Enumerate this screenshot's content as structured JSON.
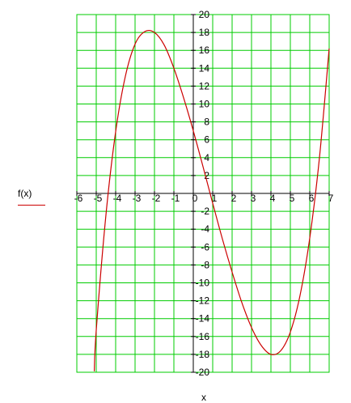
{
  "chart_data": {
    "type": "line",
    "title": "",
    "xlabel": "x",
    "ylabel": "",
    "xlim": [
      -6,
      7
    ],
    "ylim": [
      -20,
      20
    ],
    "x_ticks": [
      -6,
      -5,
      -4,
      -3,
      -2,
      -1,
      0,
      1,
      2,
      3,
      4,
      5,
      6,
      7
    ],
    "y_ticks": [
      -20,
      -18,
      -16,
      -14,
      -12,
      -10,
      -8,
      -6,
      -4,
      -2,
      2,
      4,
      6,
      8,
      10,
      12,
      14,
      16,
      18,
      20
    ],
    "grid": true,
    "grid_color": "#00cc00",
    "legend": {
      "label": "f(x)",
      "placement": "left",
      "color": "#cc0000"
    },
    "series": [
      {
        "name": "f(x)",
        "color": "#cc0000",
        "x": [
          -5.1,
          -5,
          -4.5,
          -4,
          -3.5,
          -3,
          -2.5,
          -2,
          -1.5,
          -1,
          -0.5,
          0,
          0.5,
          1,
          1.5,
          2,
          2.5,
          3,
          3.5,
          4,
          4.5,
          5,
          5.5,
          6,
          6.5,
          7
        ],
        "y": [
          -19.9,
          -15.3,
          -2.4,
          6.9,
          13.1,
          16.7,
          18.1,
          18.0,
          16.6,
          14.0,
          10.7,
          7.0,
          3.0,
          -1.1,
          -5.1,
          -8.8,
          -12.2,
          -15.0,
          -17.0,
          -18.0,
          -17.6,
          -15.5,
          -11.4,
          -5.0,
          4.0,
          16.2
        ]
      }
    ]
  }
}
